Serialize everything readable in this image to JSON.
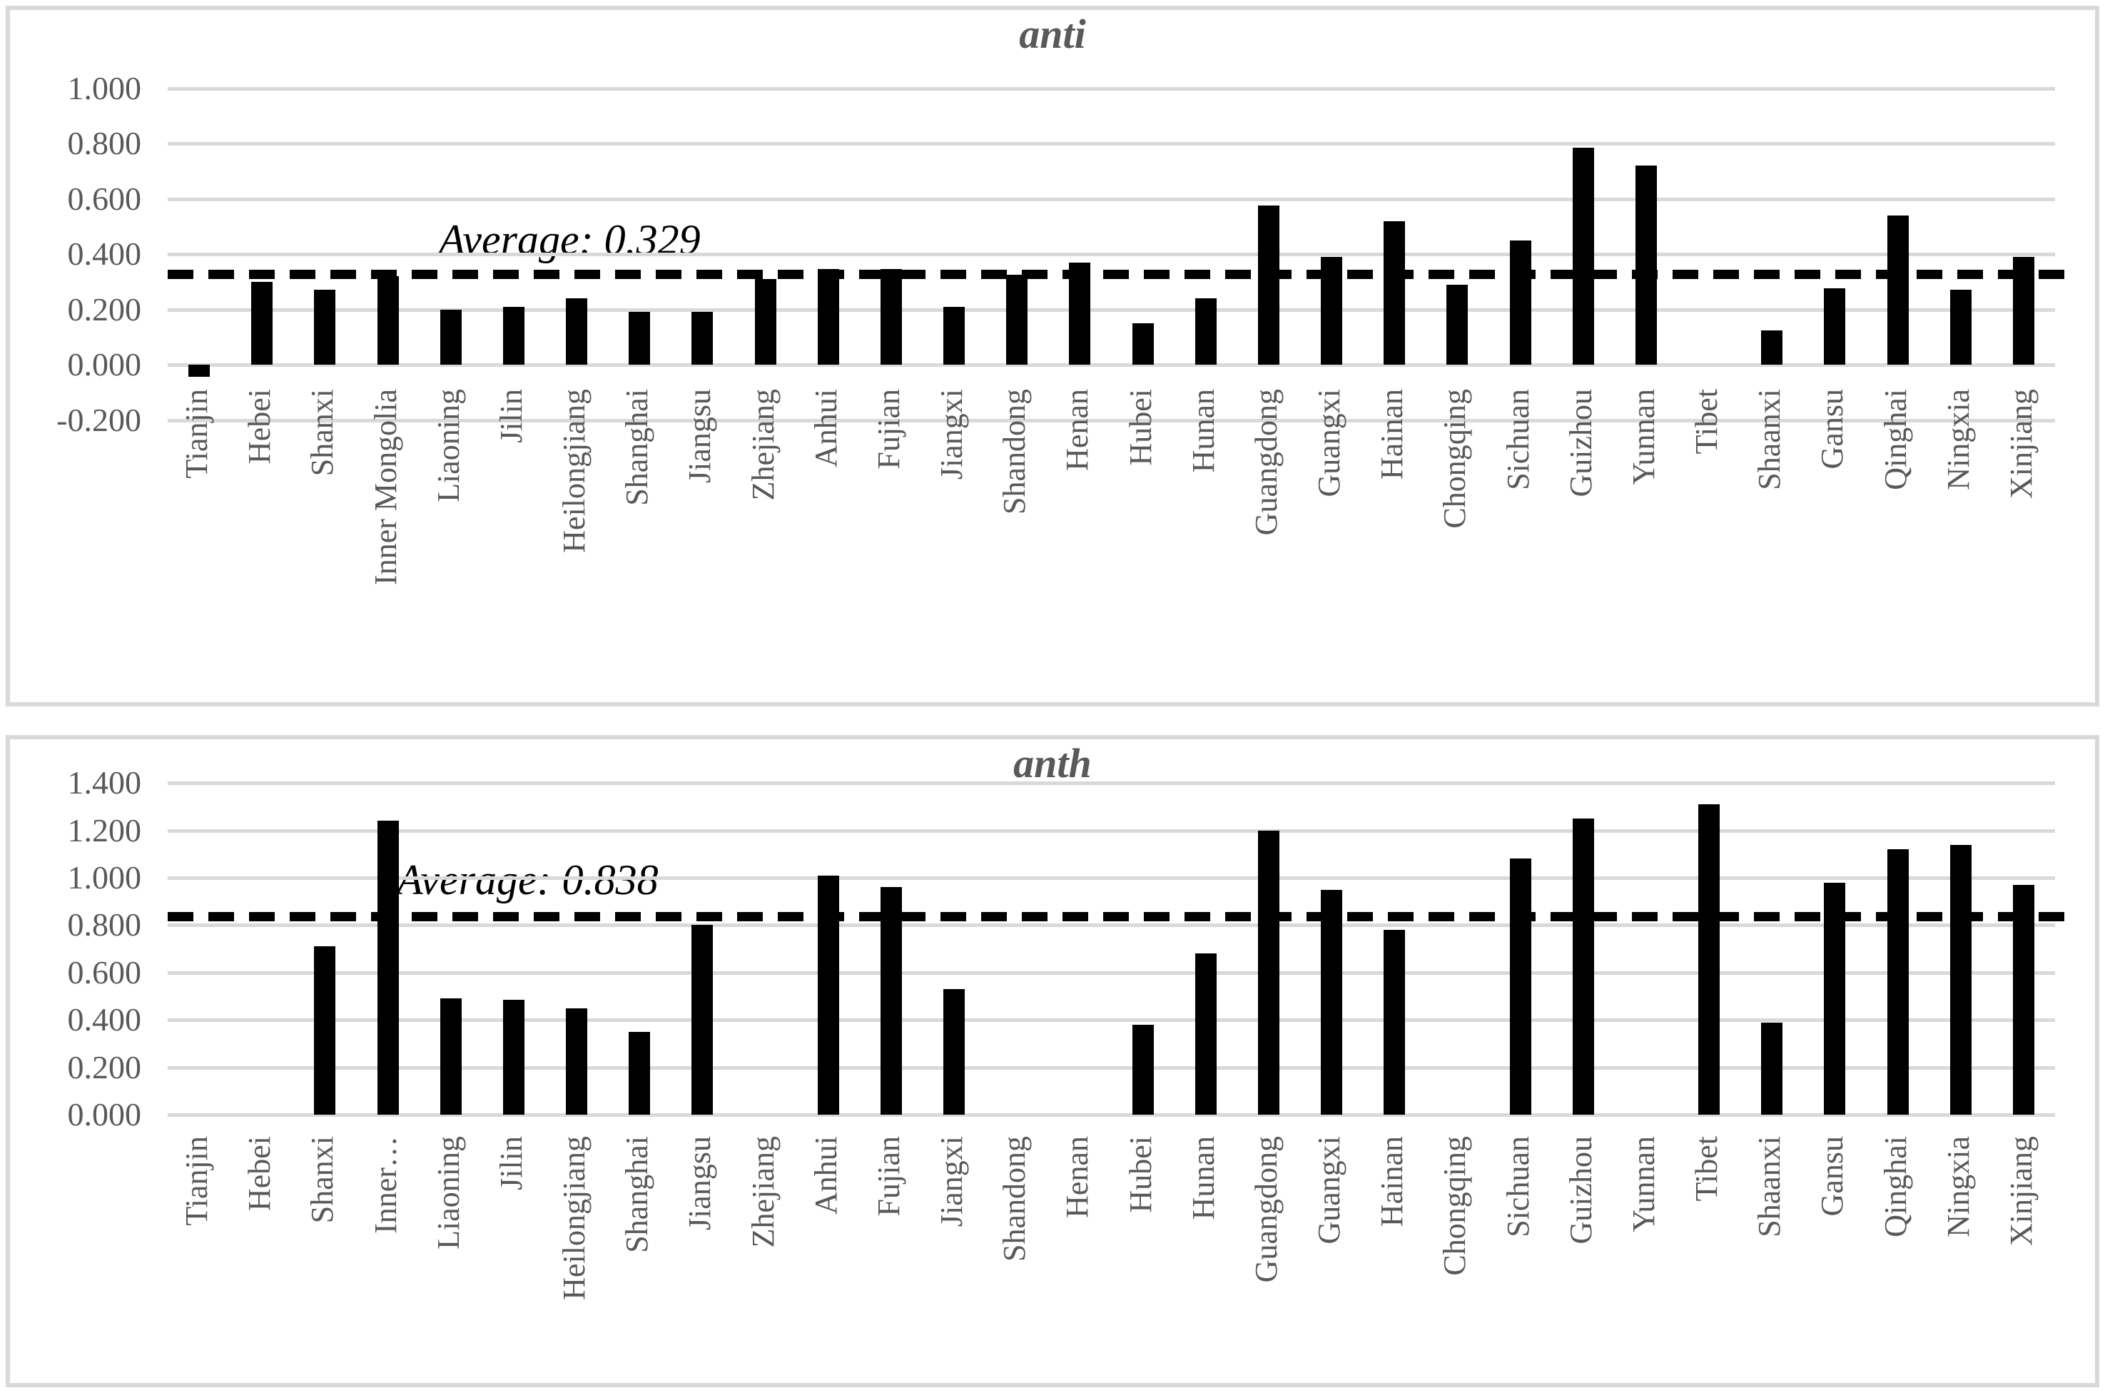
{
  "colors": {
    "bar": "#000000",
    "gridline": "#d9d9d9",
    "axis_text": "#595959",
    "title_text": "#595959",
    "annotation_text": "#000000",
    "panel_border": "#d9d9d9"
  },
  "chart_data": [
    {
      "type": "bar",
      "title": "anti",
      "average": 0.329,
      "average_label": "Average: 0.329",
      "average_line_style": "dashed",
      "grid": true,
      "legend": "none",
      "ylim": [
        -0.2,
        1.0
      ],
      "ystep": 0.2,
      "ytick_labels": [
        "1.000",
        "0.800",
        "0.600",
        "0.400",
        "0.200",
        "0.000",
        "-0.200"
      ],
      "categories": [
        "Tianjin",
        "Hebei",
        "Shanxi",
        "Inner Mongolia",
        "Liaoning",
        "Jilin",
        "Heilongjiang",
        "Shanghai",
        "Jiangsu",
        "Zhejiang",
        "Anhui",
        "Fujian",
        "Jiangxi",
        "Shandong",
        "Henan",
        "Hubei",
        "Hunan",
        "Guangdong",
        "Guangxi",
        "Hainan",
        "Chongqing",
        "Sichuan",
        "Guizhou",
        "Yunnan",
        "Tibet",
        "Shaanxi",
        "Gansu",
        "Qinghai",
        "Ningxia",
        "Xinjiang"
      ],
      "values": [
        -0.045,
        0.3,
        0.27,
        0.32,
        0.2,
        0.21,
        0.24,
        0.19,
        0.19,
        0.31,
        0.345,
        0.345,
        0.21,
        0.325,
        0.37,
        0.15,
        0.24,
        0.575,
        0.39,
        0.52,
        0.29,
        0.45,
        0.785,
        0.72,
        null,
        0.125,
        0.275,
        0.54,
        0.27,
        0.39
      ]
    },
    {
      "type": "bar",
      "title": "anth",
      "average": 0.838,
      "average_label": "Average: 0.838",
      "average_line_style": "dashed",
      "grid": true,
      "legend": "none",
      "ylim": [
        0.0,
        1.4
      ],
      "ystep": 0.2,
      "ytick_labels": [
        "1.400",
        "1.200",
        "1.000",
        "0.800",
        "0.600",
        "0.400",
        "0.200",
        "0.000"
      ],
      "categories": [
        "Tianjin",
        "Hebei",
        "Shanxi",
        "Inner…",
        "Liaoning",
        "Jilin",
        "Heilongjiang",
        "Shanghai",
        "Jiangsu",
        "Zhejiang",
        "Anhui",
        "Fujian",
        "Jiangxi",
        "Shandong",
        "Henan",
        "Hubei",
        "Hunan",
        "Guangdong",
        "Guangxi",
        "Hainan",
        "Chongqing",
        "Sichuan",
        "Guizhou",
        "Yunnan",
        "Tibet",
        "Shaanxi",
        "Gansu",
        "Qinghai",
        "Ningxia",
        "Xinjiang"
      ],
      "values": [
        null,
        null,
        0.71,
        1.24,
        0.49,
        0.485,
        0.45,
        0.35,
        0.8,
        null,
        1.01,
        0.96,
        0.53,
        null,
        null,
        0.38,
        0.68,
        1.2,
        0.95,
        0.78,
        null,
        1.08,
        1.25,
        null,
        1.31,
        0.39,
        0.98,
        1.12,
        1.14,
        0.97
      ]
    }
  ]
}
